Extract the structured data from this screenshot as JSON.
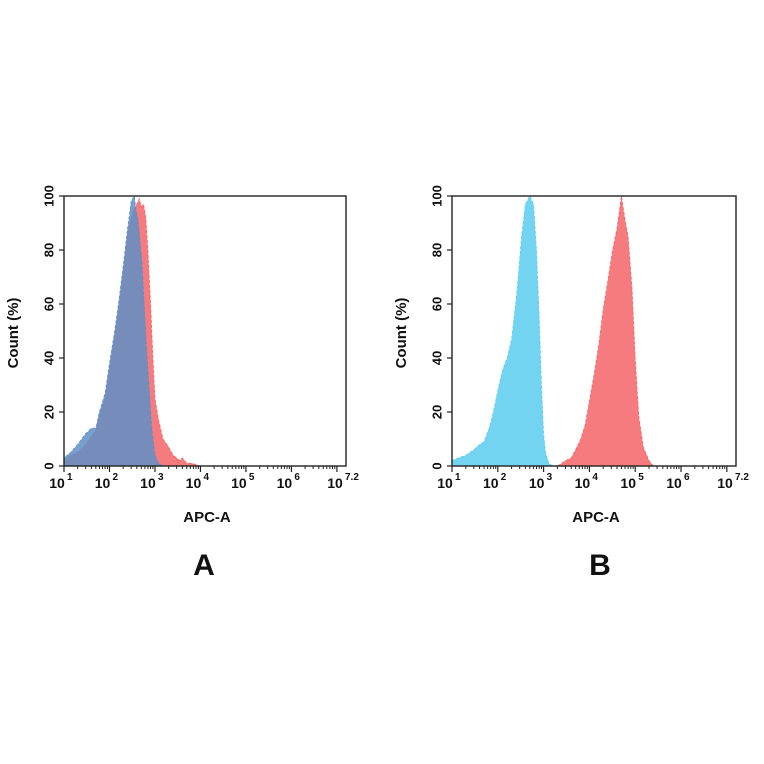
{
  "chart_data": [
    {
      "type": "area",
      "panel_label": "A",
      "xlabel": "APC-A",
      "ylabel": "Count  (%)",
      "x_scale": "log10",
      "xlim": [
        10,
        15848932
      ],
      "ylim": [
        0,
        100
      ],
      "x_ticks": [
        {
          "base": "10",
          "exp": "1"
        },
        {
          "base": "10",
          "exp": "2"
        },
        {
          "base": "10",
          "exp": "3"
        },
        {
          "base": "10",
          "exp": "4"
        },
        {
          "base": "10",
          "exp": "5"
        },
        {
          "base": "10",
          "exp": "6"
        },
        {
          "base": "10",
          "exp": "7.2"
        }
      ],
      "y_ticks": [
        "0",
        "20",
        "40",
        "60",
        "80",
        "100"
      ],
      "grid": false,
      "series": [
        {
          "color": "#f46467",
          "x": [
            10,
            14,
            20,
            30,
            40,
            50,
            60,
            80,
            100,
            130,
            160,
            200,
            250,
            320,
            400,
            450,
            500,
            560,
            630,
            700,
            800,
            900,
            1000,
            1200,
            1500,
            2000,
            2500,
            3000,
            3500,
            4000,
            5000,
            6500,
            8000,
            10000
          ],
          "y": [
            2,
            4,
            5,
            8,
            11,
            13,
            19,
            25,
            36,
            48,
            58,
            72,
            86,
            94,
            97,
            99,
            96,
            97,
            92,
            80,
            60,
            40,
            25,
            17,
            10,
            7,
            4,
            3,
            2,
            3,
            1,
            1,
            0.5,
            0
          ]
        },
        {
          "color": "#5f8fc6",
          "x": [
            10,
            14,
            20,
            30,
            40,
            50,
            60,
            80,
            100,
            130,
            160,
            200,
            250,
            300,
            350,
            380,
            420,
            460,
            520,
            580,
            650,
            750,
            850,
            1000,
            1200,
            1500
          ],
          "y": [
            3,
            5,
            8,
            12,
            14,
            14,
            20,
            27,
            38,
            50,
            61,
            74,
            88,
            98,
            100,
            95,
            92,
            85,
            75,
            60,
            44,
            28,
            14,
            4,
            1,
            0
          ]
        }
      ]
    },
    {
      "type": "area",
      "panel_label": "B",
      "xlabel": "APC-A",
      "ylabel": "Count  (%)",
      "x_scale": "log10",
      "xlim": [
        10,
        15848932
      ],
      "ylim": [
        0,
        100
      ],
      "x_ticks": [
        {
          "base": "10",
          "exp": "1"
        },
        {
          "base": "10",
          "exp": "2"
        },
        {
          "base": "10",
          "exp": "3"
        },
        {
          "base": "10",
          "exp": "4"
        },
        {
          "base": "10",
          "exp": "5"
        },
        {
          "base": "10",
          "exp": "6"
        },
        {
          "base": "10",
          "exp": "7.2"
        }
      ],
      "y_ticks": [
        "0",
        "20",
        "40",
        "60",
        "80",
        "100"
      ],
      "grid": false,
      "series": [
        {
          "color": "#5bcdf0",
          "x": [
            10,
            14,
            20,
            30,
            40,
            50,
            65,
            80,
            100,
            130,
            160,
            200,
            260,
            330,
            400,
            500,
            600,
            700,
            800,
            900,
            1000,
            1100,
            1300,
            1600
          ],
          "y": [
            2,
            3,
            4,
            6,
            8,
            9,
            14,
            20,
            28,
            36,
            40,
            47,
            64,
            85,
            97,
            100,
            97,
            80,
            55,
            30,
            12,
            5,
            1,
            0
          ]
        },
        {
          "color": "#f46467",
          "x": [
            2000,
            2500,
            3000,
            4000,
            5000,
            6500,
            8000,
            10000,
            13000,
            16000,
            20000,
            25000,
            32000,
            40000,
            50000,
            60000,
            70000,
            85000,
            100000,
            120000,
            150000,
            200000,
            250000
          ],
          "y": [
            0,
            1,
            2,
            3,
            6,
            10,
            15,
            24,
            35,
            45,
            58,
            68,
            80,
            88,
            100,
            91,
            85,
            66,
            40,
            18,
            7,
            2,
            0
          ]
        }
      ]
    }
  ]
}
